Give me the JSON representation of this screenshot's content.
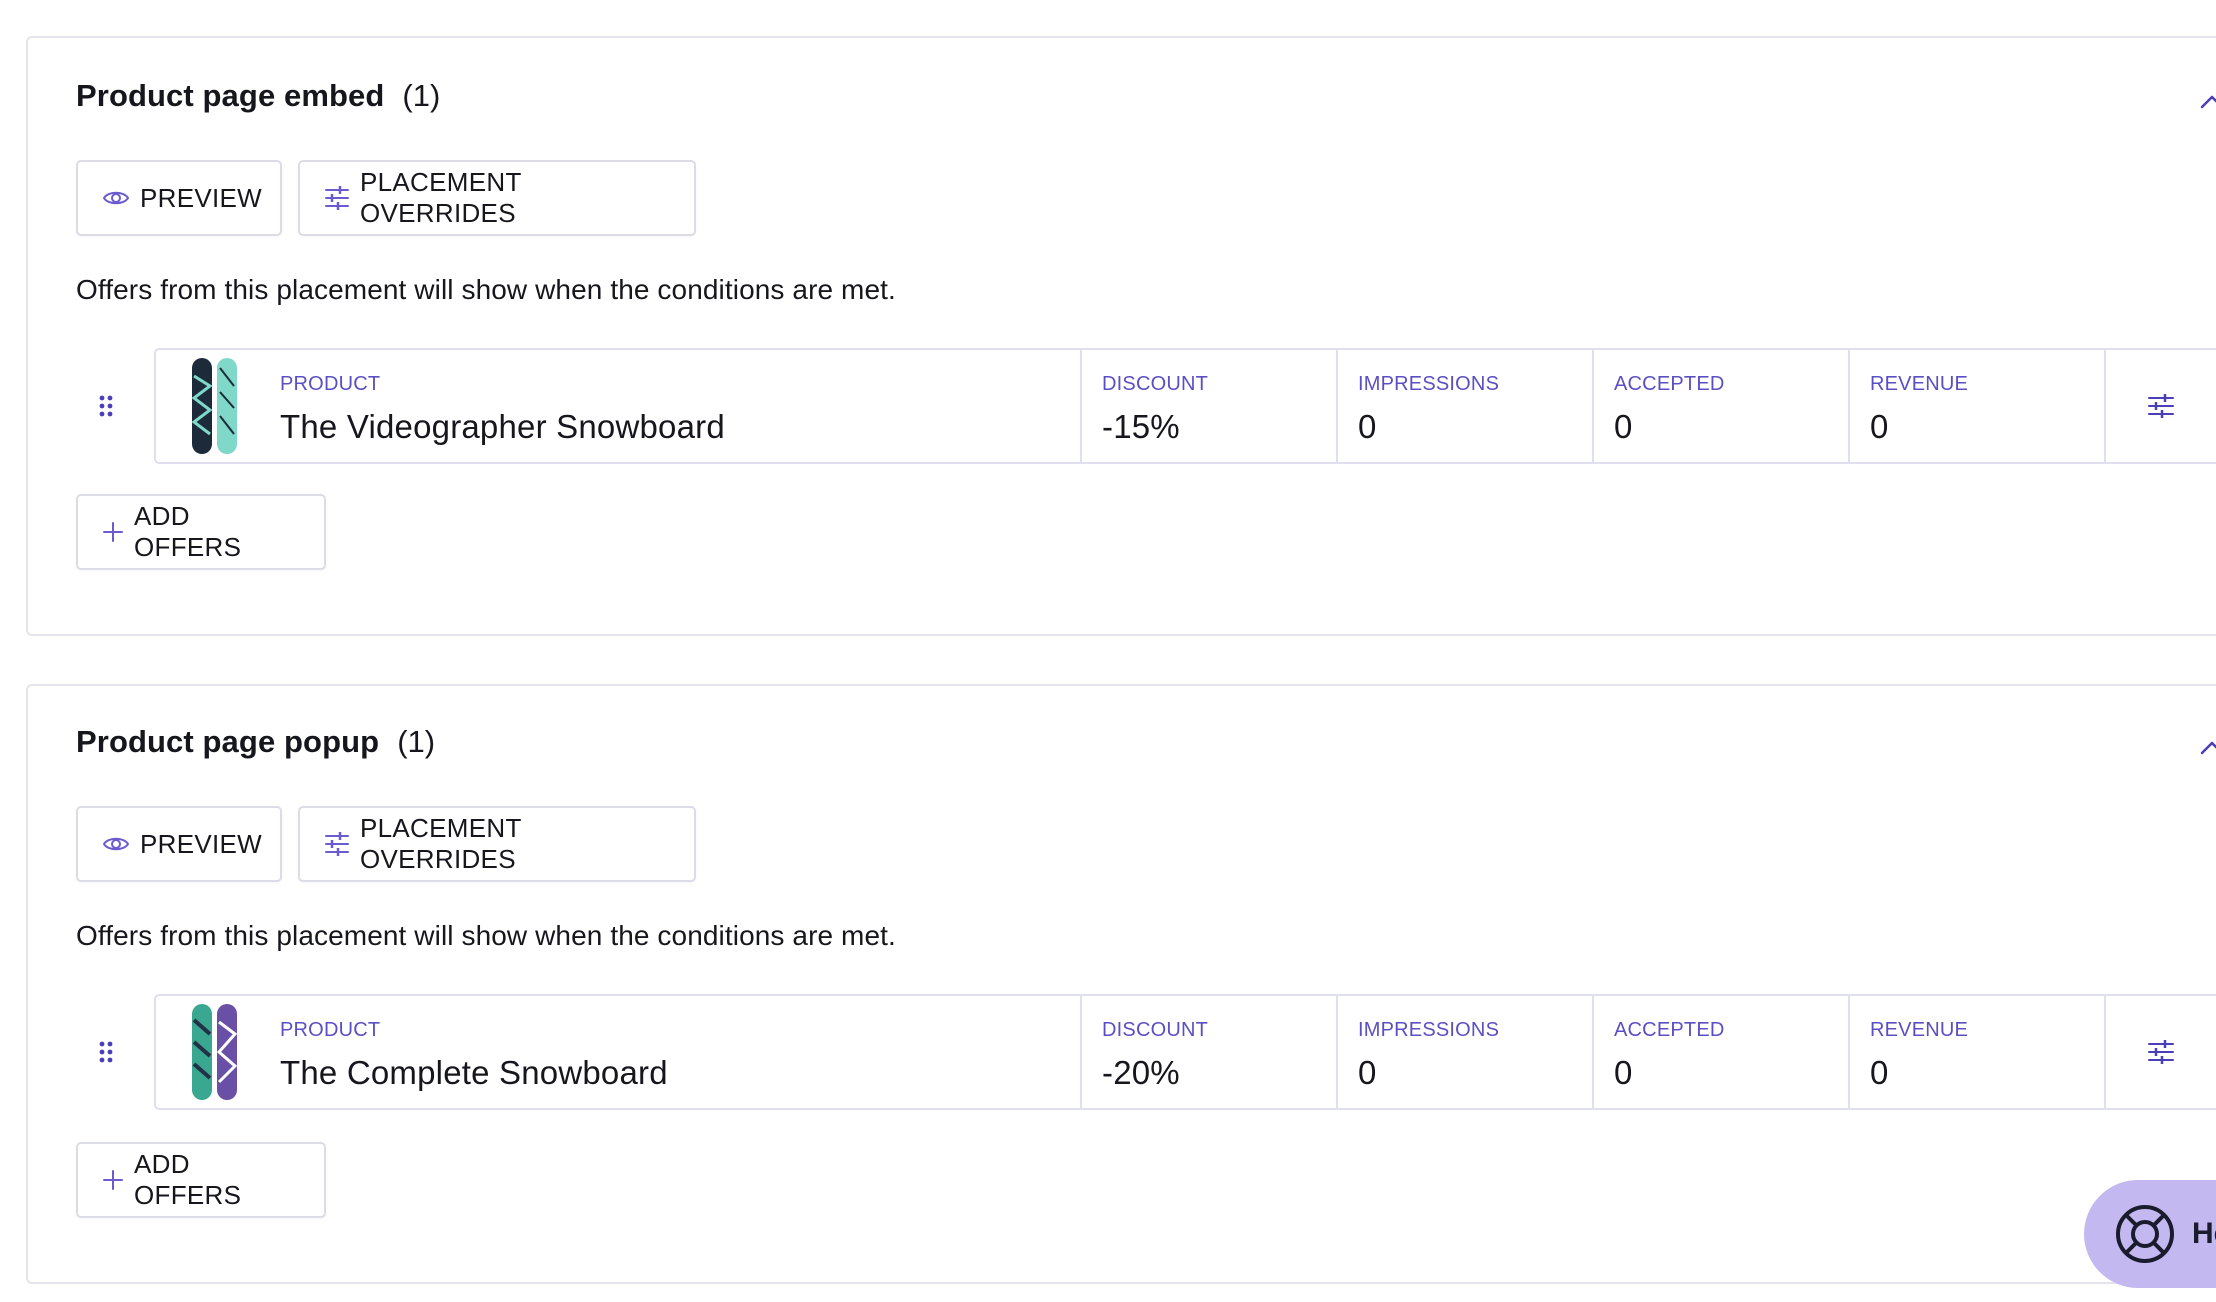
{
  "sections": [
    {
      "title": "Product page embed",
      "count": "(1)",
      "preview_label": "PREVIEW",
      "overrides_label": "PLACEMENT OVERRIDES",
      "helper": "Offers from this placement will show when the conditions are met.",
      "offer": {
        "product_label": "PRODUCT",
        "product_name": "The Videographer Snowboard",
        "discount_label": "DISCOUNT",
        "discount": "-15%",
        "impressions_label": "IMPRESSIONS",
        "impressions": "0",
        "accepted_label": "ACCEPTED",
        "accepted": "0",
        "revenue_label": "REVENUE",
        "revenue": "0",
        "thumbnail_icon": "snowboard-image"
      },
      "add_offers_label": "ADD OFFERS"
    },
    {
      "title": "Product page popup",
      "count": "(1)",
      "preview_label": "PREVIEW",
      "overrides_label": "PLACEMENT OVERRIDES",
      "helper": "Offers from this placement will show when the conditions are met.",
      "offer": {
        "product_label": "PRODUCT",
        "product_name": "The Complete Snowboard",
        "discount_label": "DISCOUNT",
        "discount": "-20%",
        "impressions_label": "IMPRESSIONS",
        "impressions": "0",
        "accepted_label": "ACCEPTED",
        "accepted": "0",
        "revenue_label": "REVENUE",
        "revenue": "0",
        "thumbnail_icon": "snowboard-image"
      },
      "add_offers_label": "ADD OFFERS"
    }
  ],
  "help": {
    "label": "He",
    "icon": "lifebuoy-icon"
  },
  "colors": {
    "accent": "#5b4fc4",
    "border": "#e0dff0",
    "help_bg": "#c4b8f1"
  }
}
